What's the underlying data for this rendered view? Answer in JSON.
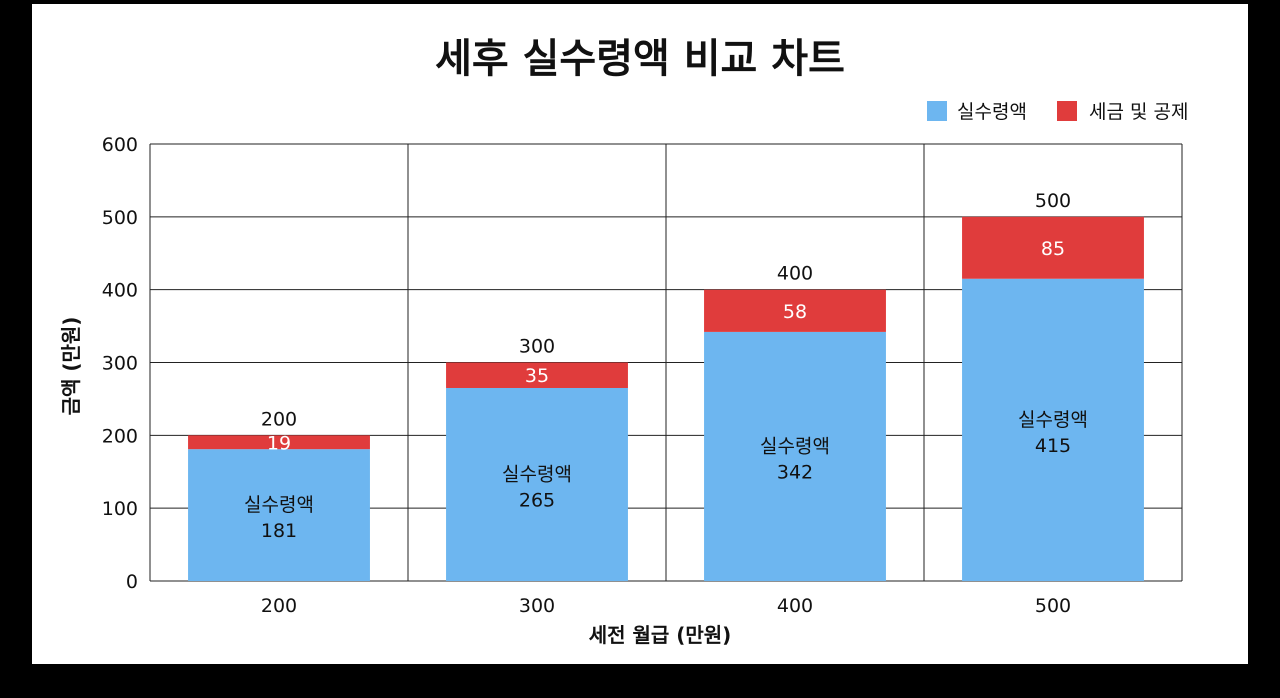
{
  "chart_data": {
    "type": "bar",
    "stacked": true,
    "title": "세후 실수령액 비교 차트",
    "xlabel": "세전 월급 (만원)",
    "ylabel": "금액 (만원)",
    "categories": [
      "200",
      "300",
      "400",
      "500"
    ],
    "series": [
      {
        "name": "실수령액",
        "values": [
          181,
          265,
          342,
          415
        ],
        "color": "#6db6f0"
      },
      {
        "name": "세금 및 공제",
        "values": [
          19,
          35,
          58,
          85
        ],
        "color": "#e03c3c"
      }
    ],
    "totals": [
      200,
      300,
      400,
      500
    ],
    "segment_label": "실수령액",
    "yticks": [
      0,
      100,
      200,
      300,
      400,
      500,
      600
    ],
    "ylim": [
      0,
      600
    ],
    "grid": true,
    "legend_position": "top-right"
  }
}
